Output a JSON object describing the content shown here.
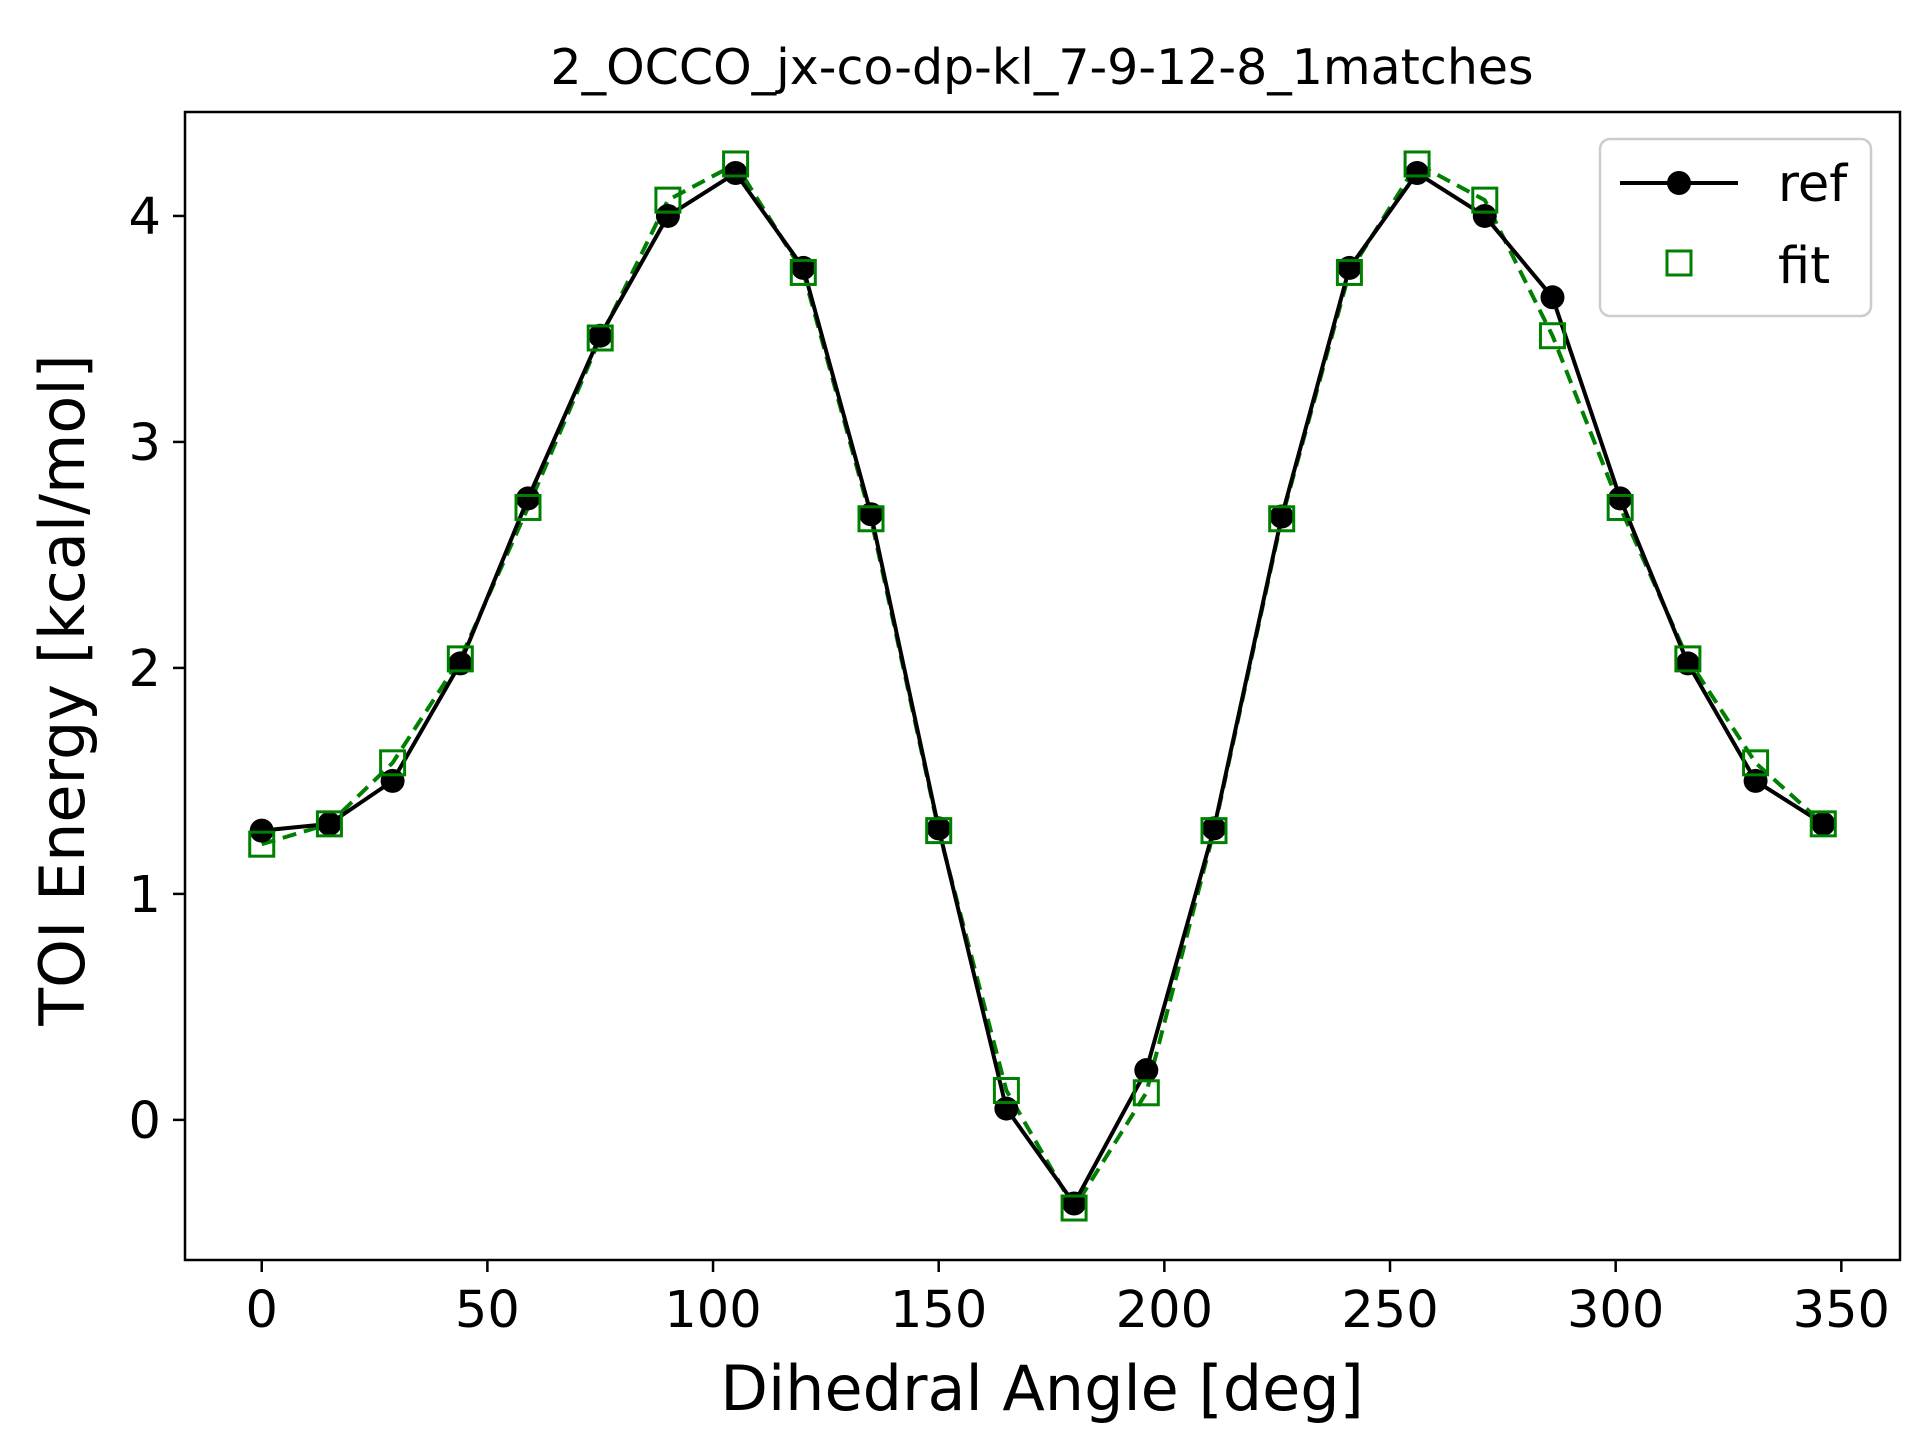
{
  "chart_data": {
    "type": "line",
    "title": "2_OCCO_jx-co-dp-kl_7-9-12-8_1matches",
    "xlabel": "Dihedral Angle [deg]",
    "ylabel": "TOI Energy [kcal/mol]",
    "xlim": [
      -17,
      363
    ],
    "ylim": [
      -0.62,
      4.46
    ],
    "xticks": [
      0,
      50,
      100,
      150,
      200,
      250,
      300,
      350
    ],
    "yticks": [
      0,
      1,
      2,
      3,
      4
    ],
    "grid": false,
    "legend_position": "top-right",
    "x": [
      0,
      15,
      29,
      44,
      59,
      75,
      90,
      105,
      120,
      135,
      150,
      165,
      180,
      196,
      211,
      226,
      241,
      256,
      271,
      286,
      301,
      316,
      331,
      346
    ],
    "series": [
      {
        "name": "ref",
        "color": "#000000",
        "marker": "circle-filled",
        "line": "solid",
        "values": [
          1.28,
          1.31,
          1.5,
          2.02,
          2.75,
          3.47,
          4.0,
          4.19,
          3.77,
          2.68,
          1.29,
          0.05,
          -0.37,
          0.22,
          1.29,
          2.67,
          3.77,
          4.19,
          4.0,
          3.64,
          2.75,
          2.02,
          1.5,
          1.31
        ]
      },
      {
        "name": "fit",
        "color": "#008000",
        "marker": "square-open",
        "line": "dashed",
        "values": [
          1.22,
          1.31,
          1.58,
          2.04,
          2.71,
          3.46,
          4.07,
          4.23,
          3.75,
          2.66,
          1.28,
          0.13,
          -0.39,
          0.12,
          1.28,
          2.66,
          3.75,
          4.23,
          4.07,
          3.47,
          2.71,
          2.04,
          1.58,
          1.31
        ]
      }
    ]
  },
  "colors": {
    "ref": "#000000",
    "fit": "#008000",
    "axes": "#000000",
    "legend_border": "#cccccc"
  }
}
